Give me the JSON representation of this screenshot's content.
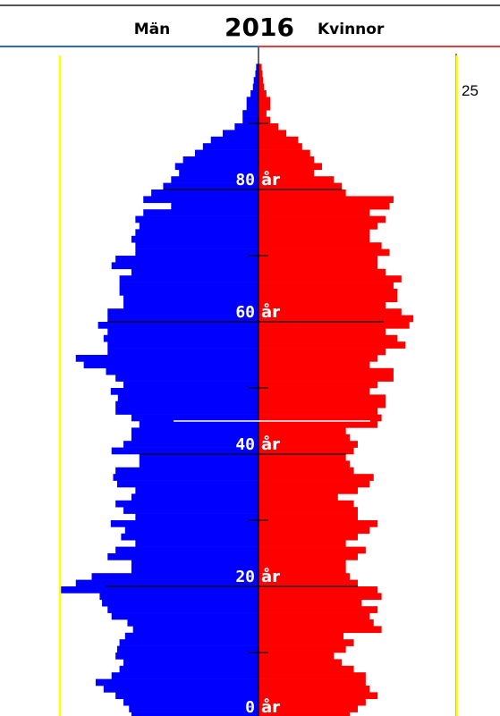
{
  "chart_data": {
    "type": "bar",
    "subtype": "population-pyramid",
    "year": "2016",
    "left_label": "Män",
    "right_label": "Kvinnor",
    "scale_label": "25",
    "age_unit": "år",
    "age_ticks": [
      "80",
      "60",
      "40",
      "20",
      "0"
    ],
    "colors": {
      "men": "#0000ff",
      "women": "#ff0000",
      "marker": "#ffff00",
      "men_line": "#3366cc",
      "women_line": "#e04040"
    },
    "x_max": 25,
    "ages": [
      0,
      1,
      2,
      3,
      4,
      5,
      6,
      7,
      8,
      9,
      10,
      11,
      12,
      13,
      14,
      15,
      16,
      17,
      18,
      19,
      20,
      21,
      22,
      23,
      24,
      25,
      26,
      27,
      28,
      29,
      30,
      31,
      32,
      33,
      34,
      35,
      36,
      37,
      38,
      39,
      40,
      41,
      42,
      43,
      44,
      45,
      46,
      47,
      48,
      49,
      50,
      51,
      52,
      53,
      54,
      55,
      56,
      57,
      58,
      59,
      60,
      61,
      62,
      63,
      64,
      65,
      66,
      67,
      68,
      69,
      70,
      71,
      72,
      73,
      74,
      75,
      76,
      77,
      78,
      79,
      80,
      81,
      82,
      83,
      84,
      85,
      86,
      87,
      88,
      89,
      90,
      91,
      92,
      93,
      94,
      95,
      96,
      97,
      98
    ],
    "series": [
      {
        "name": "Män",
        "values": [
          16,
          16.3,
          17,
          18,
          19.5,
          20.5,
          18.5,
          17.5,
          17,
          18,
          17.8,
          17.5,
          16.8,
          15.8,
          16.5,
          18.5,
          19,
          19.7,
          20,
          25,
          23,
          21,
          16,
          16,
          19,
          18,
          15.5,
          17.3,
          16.8,
          18.6,
          15.5,
          17,
          18,
          16,
          15.5,
          17.8,
          18.3,
          18,
          15,
          15,
          18.5,
          17,
          16,
          16,
          15,
          16,
          18,
          18,
          17.7,
          18.6,
          17,
          18,
          19.2,
          22,
          23,
          19,
          19,
          19.5,
          19,
          20.2,
          19,
          19,
          17,
          17,
          17.5,
          17.5,
          17.5,
          16,
          18.5,
          18,
          15.5,
          15.5,
          16,
          15.5,
          15,
          15.5,
          14.5,
          11,
          14.5,
          13.5,
          12,
          11,
          10,
          10.5,
          9.5,
          8,
          7,
          6,
          4.5,
          3,
          2,
          2,
          1.5,
          1.5,
          1,
          0.7,
          0.6,
          0.4,
          0.3
        ]
      },
      {
        "name": "Kvinnor",
        "values": [
          11.5,
          12.5,
          13.5,
          15,
          14,
          13.5,
          13.5,
          12,
          10.5,
          9.5,
          11,
          12,
          10.7,
          15.5,
          14.5,
          14,
          15,
          13,
          15.5,
          15,
          12.5,
          11.5,
          11,
          11,
          12.5,
          13.5,
          11,
          12.5,
          14,
          15,
          12.5,
          12.5,
          12,
          10,
          12.5,
          14,
          14.5,
          12,
          11.5,
          11,
          12,
          12.5,
          11.5,
          11,
          15,
          15.5,
          15,
          16,
          16,
          14,
          15,
          17,
          17,
          14,
          15,
          16,
          18.5,
          17.5,
          16,
          19,
          19.5,
          18,
          16,
          17.5,
          17.5,
          17,
          18,
          16,
          15,
          15,
          16.5,
          15.5,
          14,
          14,
          15,
          16,
          14,
          16.5,
          17,
          11,
          10.5,
          9.5,
          7,
          8,
          7,
          6.5,
          5.5,
          5,
          3.5,
          2.5,
          1.5,
          1,
          1.5,
          1.5,
          1,
          0.7,
          0.6,
          0.5,
          0.4
        ]
      }
    ]
  }
}
